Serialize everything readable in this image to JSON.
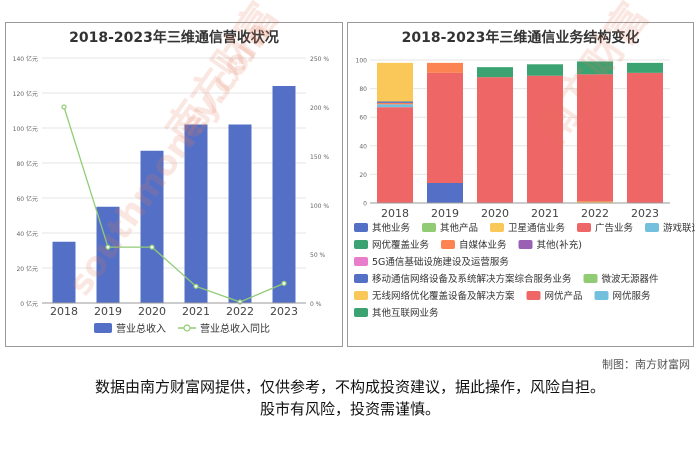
{
  "chart_data": [
    {
      "type": "bar",
      "title": "2018-2023年三维通信营收状况",
      "categories": [
        "2018",
        "2019",
        "2020",
        "2021",
        "2022",
        "2023"
      ],
      "series": [
        {
          "name": "营业总收入",
          "axis": "left",
          "kind": "bar",
          "color": "#5470c6",
          "values": [
            35,
            55,
            87,
            102,
            102,
            124
          ]
        },
        {
          "name": "营业总收入同比",
          "axis": "right",
          "kind": "line",
          "color": "#91cc75",
          "values": [
            200,
            57,
            57,
            17,
            1,
            20
          ]
        }
      ],
      "y_left": {
        "ticks": [
          "0 亿元",
          "20 亿元",
          "40 亿元",
          "60 亿元",
          "80 亿元",
          "100 亿元",
          "120 亿元",
          "140 亿元"
        ],
        "ylim": [
          0,
          140
        ]
      },
      "y_right": {
        "ticks": [
          "0 %",
          "50 %",
          "100 %",
          "150 %",
          "200 %",
          "250 %"
        ],
        "ylim": [
          0,
          250
        ]
      },
      "legend_position": "bottom",
      "grid": true
    },
    {
      "type": "bar",
      "stacked": true,
      "title": "2018-2023年三维通信业务结构变化",
      "categories": [
        "2018",
        "2019",
        "2020",
        "2021",
        "2022",
        "2023"
      ],
      "y_ticks": [
        "0",
        "20",
        "40",
        "60",
        "80",
        "100"
      ],
      "ylim": [
        0,
        100
      ],
      "y_unit": "%",
      "series": [
        {
          "name": "其他业务",
          "color": "#5470c6",
          "values": [
            0,
            14,
            0,
            0,
            0,
            0
          ]
        },
        {
          "name": "其他产品",
          "color": "#91cc75",
          "values": [
            0,
            0,
            0,
            0,
            0,
            0
          ]
        },
        {
          "name": "卫星通信业务",
          "color": "#fac858",
          "values": [
            0,
            0,
            0,
            0,
            1,
            0
          ]
        },
        {
          "name": "广告业务",
          "color": "#ee6666",
          "values": [
            67,
            77,
            88,
            89,
            89,
            91
          ]
        },
        {
          "name": "游戏联运",
          "color": "#73c0de",
          "values": [
            2,
            0,
            0,
            0,
            0,
            0
          ]
        },
        {
          "name": "网优覆盖业务",
          "color": "#3ba272",
          "values": [
            0,
            0,
            7,
            8,
            9,
            7
          ]
        },
        {
          "name": "自媒体业务",
          "color": "#fc8452",
          "values": [
            1,
            7,
            0,
            0,
            0,
            0
          ]
        },
        {
          "name": "其他(补充)",
          "color": "#9a60b4",
          "values": [
            0,
            0,
            0,
            0,
            0,
            0
          ]
        },
        {
          "name": "5G通信基础设施建设及运营服务",
          "color": "#ea7ccc",
          "values": [
            0,
            0,
            0,
            0,
            0,
            0
          ]
        },
        {
          "name": "移动通信网络设备及系统解决方案综合服务业务",
          "color": "#5470c6",
          "values": [
            1,
            0,
            0,
            0,
            0,
            0
          ]
        },
        {
          "name": "微波无源器件",
          "color": "#91cc75",
          "values": [
            0,
            0,
            0,
            0,
            0,
            0
          ]
        },
        {
          "name": "无线网络优化覆盖设备及解决方案",
          "color": "#fac858",
          "values": [
            27,
            0,
            0,
            0,
            0,
            0
          ]
        },
        {
          "name": "网优产品",
          "color": "#ee6666",
          "values": [
            0,
            0,
            0,
            0,
            0,
            0
          ]
        },
        {
          "name": "网优服务",
          "color": "#73c0de",
          "values": [
            0,
            0,
            0,
            0,
            0,
            0
          ]
        },
        {
          "name": "其他互联网业务",
          "color": "#3ba272",
          "values": [
            0,
            0,
            0,
            0,
            0,
            0
          ]
        }
      ],
      "legend_position": "bottom",
      "grid": true
    }
  ],
  "footer": {
    "credit": "制图：南方财富网",
    "disclaimer_line1": "数据由南方财富网提供，仅供参考，不构成投资建议，据此操作，风险自担。",
    "disclaimer_line2": "股市有风险，投资需谨慎。"
  },
  "watermark": {
    "text1": "南方财富",
    "text2": "southmoney.com"
  }
}
